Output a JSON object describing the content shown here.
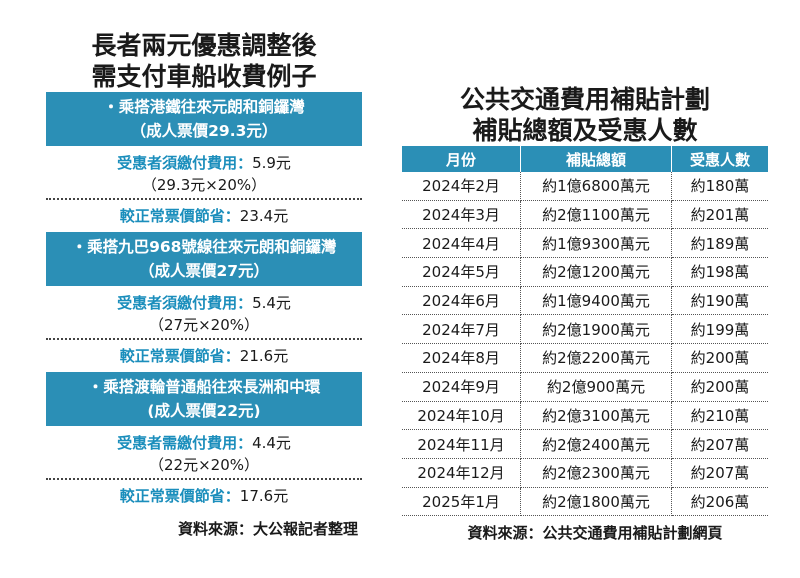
{
  "left_panel": {
    "title_line1": "長者兩元優惠調整後",
    "title_line2": "需支付車船收費例子",
    "examples": [
      {
        "route": "・乘搭港鐵往來元朗和銅鑼灣",
        "fare": "（成人票價29.3元）",
        "pay_label": "受惠者須繳付費用：",
        "pay_value": "5.9元",
        "calc": "（29.3元×20%）",
        "save_label": "較正常票價節省：",
        "save_value": "23.4元"
      },
      {
        "route": "・乘搭九巴968號線往來元朗和銅鑼灣",
        "fare": "（成人票價27元）",
        "pay_label": "受惠者須繳付費用：",
        "pay_value": "5.4元",
        "calc": "（27元×20%）",
        "save_label": "較正常票價節省：",
        "save_value": "21.6元"
      },
      {
        "route": "・乘搭渡輪普通船往來長洲和中環",
        "fare": "(成人票價22元)",
        "pay_label": "受惠者需繳付費用：",
        "pay_value": "4.4元",
        "calc": "（22元×20%）",
        "save_label": "較正常票價節省：",
        "save_value": "17.6元"
      }
    ],
    "source": "資料來源：大公報記者整理"
  },
  "right_panel": {
    "title_line1": "公共交通費用補貼計劃",
    "title_line2": "補貼總額及受惠人數",
    "headers": [
      "月份",
      "補貼總額",
      "受惠人數"
    ],
    "rows": [
      [
        "2024年2月",
        "約1億6800萬元",
        "約180萬"
      ],
      [
        "2024年3月",
        "約2億1100萬元",
        "約201萬"
      ],
      [
        "2024年4月",
        "約1億9300萬元",
        "約189萬"
      ],
      [
        "2024年5月",
        "約2億1200萬元",
        "約198萬"
      ],
      [
        "2024年6月",
        "約1億9400萬元",
        "約190萬"
      ],
      [
        "2024年7月",
        "約2億1900萬元",
        "約199萬"
      ],
      [
        "2024年8月",
        "約2億2200萬元",
        "約200萬"
      ],
      [
        "2024年9月",
        "約2億900萬元",
        "約200萬"
      ],
      [
        "2024年10月",
        "約2億3100萬元",
        "約210萬"
      ],
      [
        "2024年11月",
        "約2億2400萬元",
        "約207萬"
      ],
      [
        "2024年12月",
        "約2億2300萬元",
        "約207萬"
      ],
      [
        "2025年1月",
        "約2億1800萬元",
        "約206萬"
      ]
    ],
    "source": "資料來源：公共交通費用補貼計劃網頁"
  },
  "colors": {
    "header_blue": "#2b8fb6",
    "label_cyan": "#1b8ebc"
  }
}
